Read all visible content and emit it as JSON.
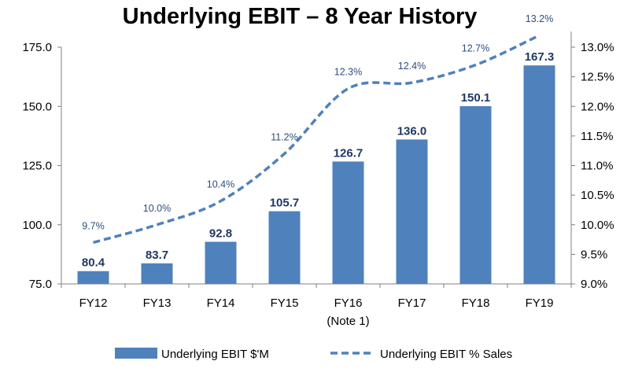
{
  "chart_data": {
    "type": "bar",
    "title": "Underlying EBIT – 8 Year History",
    "categories": [
      "FY12",
      "FY13",
      "FY14",
      "FY15",
      "FY16",
      "FY17",
      "FY18",
      "FY19"
    ],
    "category_notes": [
      "",
      "",
      "",
      "",
      "(Note 1)",
      "",
      "",
      ""
    ],
    "series": [
      {
        "name": "Underlying EBIT $'M",
        "type": "bar",
        "axis": "left",
        "color": "#4f81bd",
        "values": [
          80.4,
          83.7,
          92.8,
          105.7,
          126.7,
          136.0,
          150.1,
          167.3
        ],
        "labels": [
          "80.4",
          "83.7",
          "92.8",
          "105.7",
          "126.7",
          "136.0",
          "150.1",
          "167.3"
        ]
      },
      {
        "name": "Underlying EBIT % Sales",
        "type": "line",
        "style": "dashed",
        "axis": "right",
        "color": "#4f81bd",
        "values": [
          9.7,
          10.0,
          10.4,
          11.2,
          12.3,
          12.4,
          12.7,
          13.2
        ],
        "labels": [
          "9.7%",
          "10.0%",
          "10.4%",
          "11.2%",
          "12.3%",
          "12.4%",
          "12.7%",
          "13.2%"
        ]
      }
    ],
    "y_left": {
      "min": 75,
      "max": 175,
      "ticks": [
        "75.0",
        "100.0",
        "125.0",
        "150.0",
        "175.0"
      ]
    },
    "y_right": {
      "min": 9.0,
      "max": 13.0,
      "ticks": [
        "9.0%",
        "9.5%",
        "10.0%",
        "10.5%",
        "11.0%",
        "11.5%",
        "12.0%",
        "12.5%",
        "13.0%"
      ]
    },
    "grid": false,
    "legend_position": "bottom"
  }
}
